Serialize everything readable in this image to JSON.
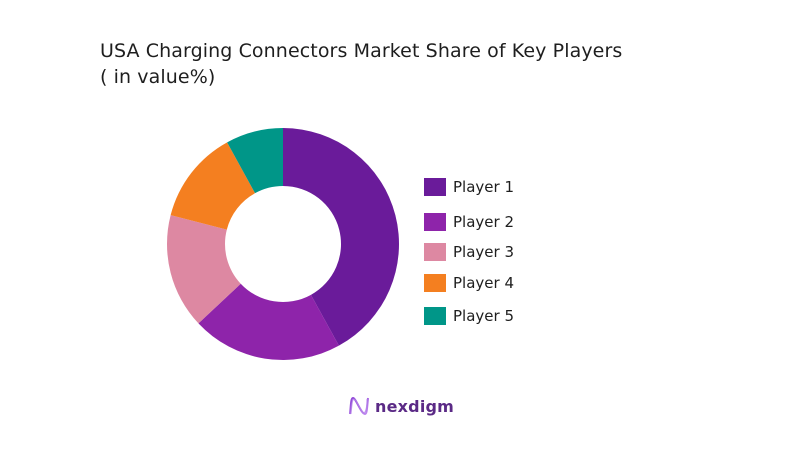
{
  "chart_data": {
    "type": "pie",
    "variant": "donut",
    "title": "USA Charging Connectors Market Share of Key Players",
    "subtitle": "( in value%)",
    "categories": [
      "Player 1",
      "Player 2",
      "Player 3",
      "Player 4",
      "Player 5"
    ],
    "values": [
      42,
      21,
      16,
      13,
      8
    ],
    "colors": [
      "#6a1b9a",
      "#8e24aa",
      "#dd88a2",
      "#f47f20",
      "#009688"
    ],
    "legend_position": "right",
    "start_angle_deg": 0,
    "direction": "clockwise"
  },
  "title": {
    "line1": "USA Charging Connectors Market Share of Key Players",
    "line2": "( in value%)"
  },
  "legend": {
    "items": [
      {
        "label": "Player 1",
        "color": "#6a1b9a"
      },
      {
        "label": "Player 2",
        "color": "#8e24aa"
      },
      {
        "label": "Player 3",
        "color": "#dd88a2"
      },
      {
        "label": "Player 4",
        "color": "#f47f20"
      },
      {
        "label": "Player 5",
        "color": "#009688"
      }
    ]
  },
  "brand": {
    "name": "nexdigm",
    "logo_icon": "nexdigm-wave-icon"
  }
}
